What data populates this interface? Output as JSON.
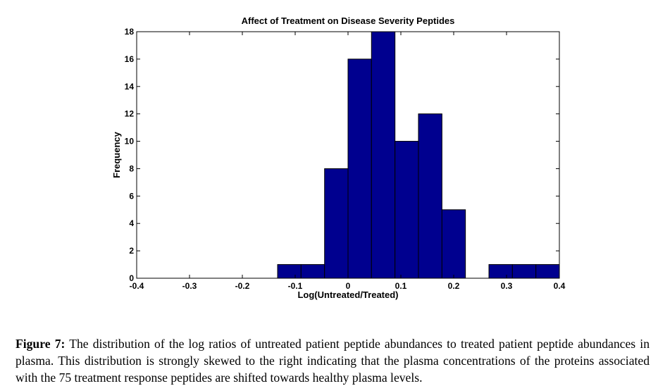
{
  "chart_data": {
    "type": "bar",
    "title": "Affect of Treatment on Disease Severity Peptides",
    "xlabel": "Log(Untreated/Treated)",
    "ylabel": "Frequency",
    "xlim": [
      -0.4,
      0.4
    ],
    "ylim": [
      0,
      18
    ],
    "x_ticks": [
      "-0.4",
      "-0.3",
      "-0.2",
      "-0.1",
      "0",
      "0.1",
      "0.2",
      "0.3",
      "0.4"
    ],
    "y_ticks": [
      "0",
      "2",
      "4",
      "6",
      "8",
      "10",
      "12",
      "14",
      "16",
      "18"
    ],
    "bin_edges": [
      -0.1333,
      -0.0889,
      -0.0444,
      0.0,
      0.0444,
      0.0889,
      0.1333,
      0.1778,
      0.2222,
      0.2667,
      0.3111,
      0.3556,
      0.4
    ],
    "values": [
      1,
      1,
      8,
      16,
      18,
      10,
      12,
      5,
      0,
      1,
      1,
      1
    ],
    "bar_color": "#00008F",
    "grid": false
  },
  "caption": {
    "label": "Figure 7:",
    "text": "The distribution of the log ratios of untreated patient peptide abundances to treated patient peptide abundances in plasma. This distribution is strongly skewed to the right indicating that the plasma concentrations of the proteins associated with the 75 treatment response peptides are shifted towards healthy plasma levels."
  }
}
